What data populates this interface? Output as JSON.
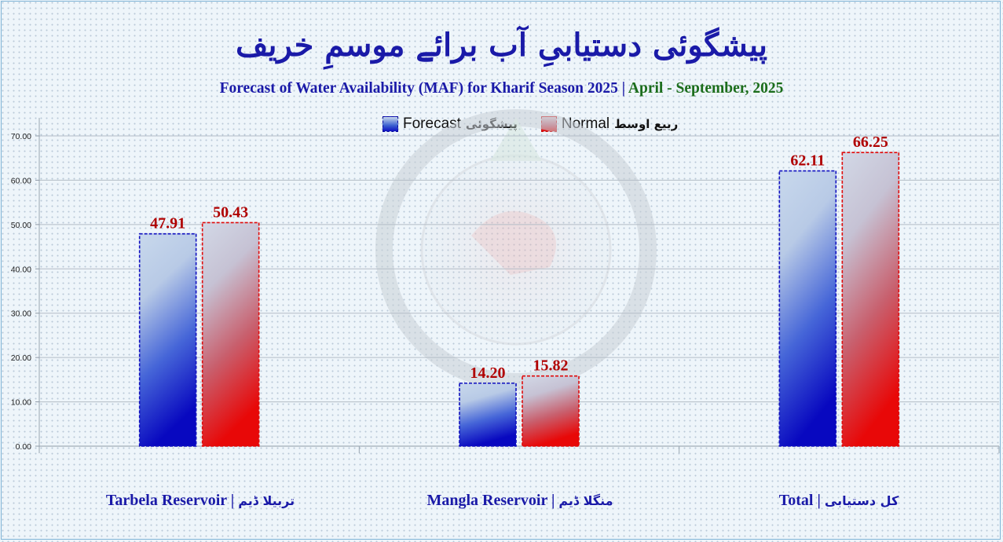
{
  "title_urdu": "پیشگوئی دستیابیِ آب برائے موسمِ خریف",
  "subtitle_part1": "Forecast of Water Availability (MAF) for Kharif Season 2025 |",
  "subtitle_part2": "April - September, 2025",
  "legend": {
    "forecast_en": "Forecast",
    "forecast_ur": "پیشگوئی",
    "normal_en": "Normal",
    "normal_ur": "ربیع اوسط"
  },
  "colors": {
    "forecast": "#1010c0",
    "normal": "#e00a0a",
    "title": "#1a1aa8",
    "period": "#1b6d1b",
    "value_label": "#b00000"
  },
  "chart_data": {
    "type": "bar",
    "categories": [
      {
        "en": "Tarbela Reservoir |",
        "ur": "تربیلا ڈیم"
      },
      {
        "en": "Mangla Reservoir |",
        "ur": "منگلا ڈیم"
      },
      {
        "en": "Total |",
        "ur": "کل دستیابی"
      }
    ],
    "series": [
      {
        "name": "Forecast",
        "values": [
          47.91,
          14.2,
          62.11
        ],
        "labels": [
          "47.91",
          "14.20",
          "62.11"
        ]
      },
      {
        "name": "Normal",
        "values": [
          50.43,
          15.82,
          66.25
        ],
        "labels": [
          "50.43",
          "15.82",
          "66.25"
        ]
      }
    ],
    "ylim": [
      0,
      70
    ],
    "yticks": [
      "0.00",
      "10.00",
      "20.00",
      "30.00",
      "40.00",
      "50.00",
      "60.00",
      "70.00"
    ],
    "grid": true,
    "legend_position": "top-center"
  }
}
